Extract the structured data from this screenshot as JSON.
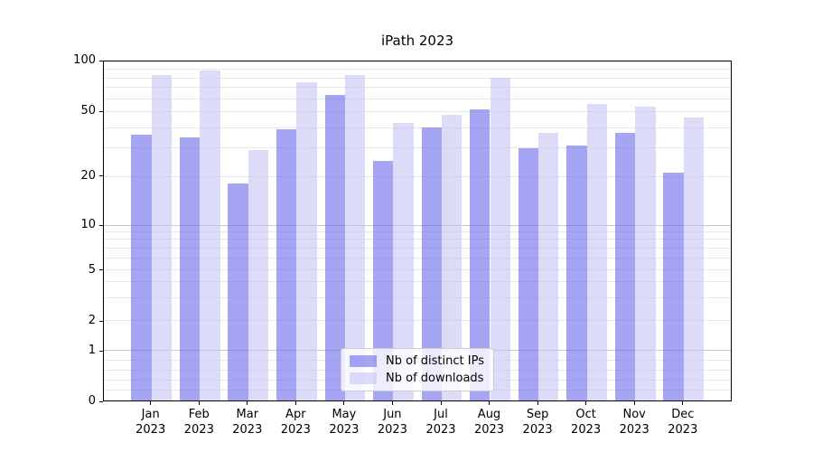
{
  "title": "iPath 2023",
  "colors": {
    "bar_ips": "rgba(105,105,235,0.6)",
    "bar_downloads": "rgba(197,197,245,0.6)",
    "grid_major": "#c9c9c9",
    "grid_minor": "#e8e8e8",
    "spine": "#000000",
    "text": "#000000",
    "legend_bg": "rgba(255,255,255,0.8)",
    "legend_border": "#cccccc"
  },
  "y_axis": {
    "tick_values": [
      0,
      1,
      2,
      5,
      10,
      20,
      50,
      100
    ],
    "tick_labels": [
      "0",
      "1",
      "2",
      "5",
      "10",
      "20",
      "50",
      "100"
    ],
    "major_grid_values": [
      1,
      10
    ],
    "minor_grid_values": [
      0.2,
      0.4,
      0.6,
      0.8,
      2,
      3,
      4,
      5,
      6,
      7,
      8,
      9,
      20,
      30,
      40,
      50,
      60,
      70,
      80,
      90
    ],
    "scale_anchors": [
      [
        0,
        0
      ],
      [
        1,
        0.1485
      ],
      [
        2,
        0.236
      ],
      [
        5,
        0.386
      ],
      [
        10,
        0.517
      ],
      [
        20,
        0.661
      ],
      [
        50,
        0.851
      ],
      [
        100,
        1.0
      ]
    ]
  },
  "x_axis": {
    "months": [
      "Jan",
      "Feb",
      "Mar",
      "Apr",
      "May",
      "Jun",
      "Jul",
      "Aug",
      "Sep",
      "Oct",
      "Nov",
      "Dec"
    ],
    "year": "2023"
  },
  "legend": {
    "items": [
      {
        "label": "Nb of distinct IPs",
        "color_key": "bar_ips"
      },
      {
        "label": "Nb of downloads",
        "color_key": "bar_downloads"
      }
    ]
  },
  "chart_data": {
    "type": "bar",
    "title": "iPath 2023",
    "categories": [
      "Jan 2023",
      "Feb 2023",
      "Mar 2023",
      "Apr 2023",
      "May 2023",
      "Jun 2023",
      "Jul 2023",
      "Aug 2023",
      "Sep 2023",
      "Oct 2023",
      "Nov 2023",
      "Dec 2023"
    ],
    "series": [
      {
        "name": "Nb of distinct IPs",
        "values": [
          36,
          35,
          18,
          39,
          63,
          25,
          40,
          52,
          30,
          31,
          37,
          21
        ]
      },
      {
        "name": "Nb of downloads",
        "values": [
          83,
          88,
          29,
          75,
          83,
          43,
          48,
          80,
          37,
          56,
          54,
          46
        ]
      }
    ],
    "xlabel": "",
    "ylabel": "",
    "ylim": [
      0,
      100
    ],
    "yscale": "symlog-like",
    "y_ticks": [
      0,
      1,
      2,
      5,
      10,
      20,
      50,
      100
    ],
    "grid": true,
    "legend_position": "lower center"
  }
}
